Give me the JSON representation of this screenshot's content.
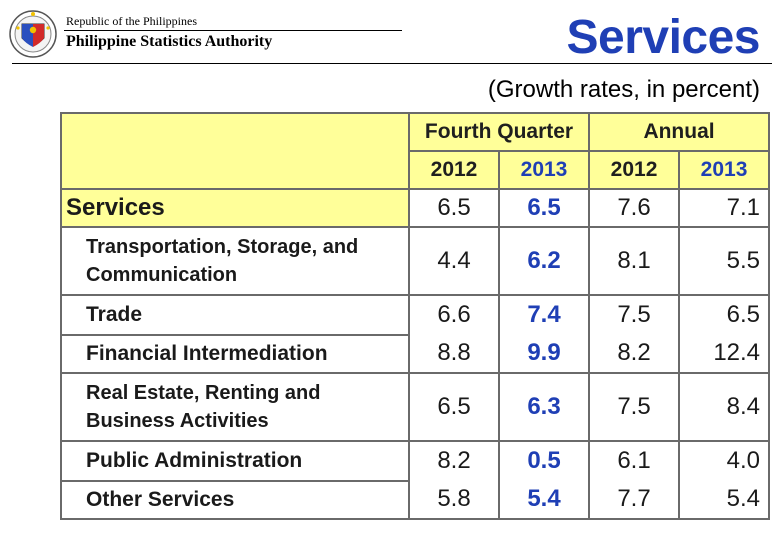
{
  "header": {
    "republic": "Republic of the Philippines",
    "agency": "Philippine Statistics Authority",
    "title": "Services",
    "subtitle": "(Growth rates, in percent)"
  },
  "table": {
    "groups": [
      "Fourth Quarter",
      "Annual"
    ],
    "years": [
      "2012",
      "2013",
      "2012",
      "2013"
    ],
    "services": {
      "label": "Services",
      "values": [
        "6.5",
        "6.5",
        "7.6",
        "7.1"
      ]
    },
    "rows": [
      {
        "label1": "Transportation, Storage, and",
        "label2": "Communication",
        "values": [
          "4.4",
          "6.2",
          "8.1",
          "5.5"
        ]
      },
      {
        "label": "Trade",
        "values": [
          "6.6",
          "7.4",
          "7.5",
          "6.5"
        ]
      },
      {
        "label": "Financial Intermediation",
        "values": [
          "8.8",
          "9.9",
          "8.2",
          "12.4"
        ]
      },
      {
        "label1": "Real Estate, Renting and",
        "label2": "Business Activities",
        "values": [
          "6.5",
          "6.3",
          "7.5",
          "8.4"
        ]
      },
      {
        "label": "Public Administration",
        "values": [
          "8.2",
          "0.5",
          "6.1",
          "4.0"
        ]
      },
      {
        "label": "Other Services",
        "values": [
          "5.8",
          "5.4",
          "7.7",
          "5.4"
        ]
      }
    ]
  },
  "colors": {
    "accent": "#1f3fb5",
    "header_fill": "#ffff99",
    "border": "#6a6a6a"
  }
}
